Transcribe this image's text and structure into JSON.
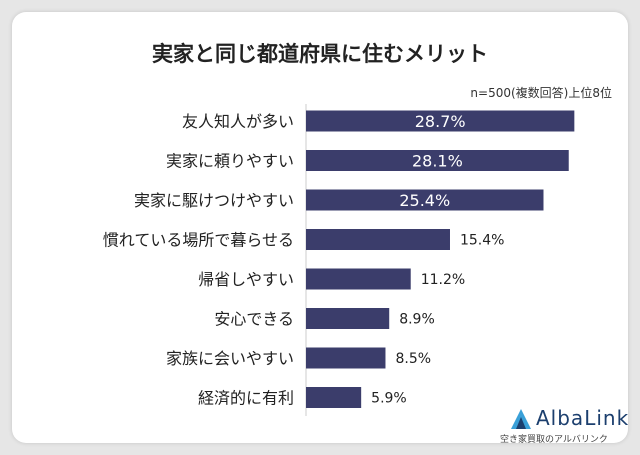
{
  "chart_data": {
    "type": "bar",
    "orientation": "horizontal",
    "title": "実家と同じ都道府県に住むメリット",
    "note": "n=500(複数回答)上位8位",
    "categories": [
      "友人知人が多い",
      "実家に頼りやすい",
      "実家に駆けつけやすい",
      "慣れている場所で暮らせる",
      "帰省しやすい",
      "安心できる",
      "家族に会いやすい",
      "経済的に有利"
    ],
    "values": [
      28.7,
      28.1,
      25.4,
      15.4,
      11.2,
      8.9,
      8.5,
      5.9
    ],
    "labels": [
      "28.7%",
      "28.1%",
      "25.4%",
      "15.4%",
      "11.2%",
      "8.9%",
      "8.5%",
      "5.9%"
    ],
    "xlim": [
      0,
      30
    ],
    "colors": {
      "bar": "#3b3d6b",
      "label_inside": "#ffffff",
      "label_outside": "#222222"
    }
  },
  "logo": {
    "name": "AlbaLink",
    "tagline": "空き家買取のアルバリンク",
    "icon": "triangle-logo-icon"
  }
}
